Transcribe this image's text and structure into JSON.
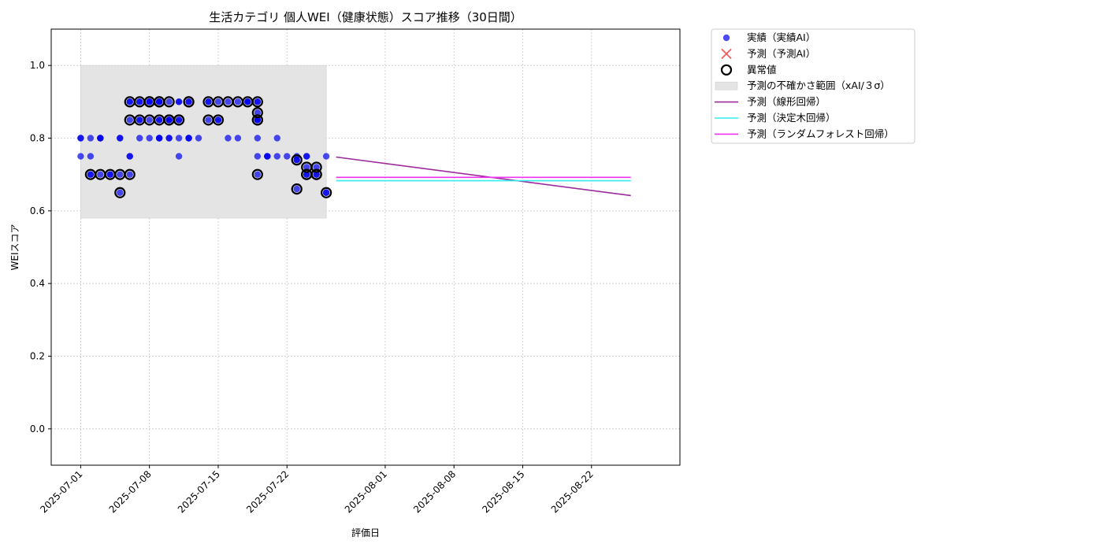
{
  "chart_data": {
    "type": "scatter",
    "title": "生活カテゴリ 個人WEI（健康状態）スコア推移（30日間）",
    "xlabel": "評価日",
    "ylabel": "WEIスコア",
    "xlim": [
      "2025-06-28",
      "2025-08-31"
    ],
    "ylim": [
      -0.1,
      1.1
    ],
    "x_ticks": [
      "2025-07-01",
      "2025-07-08",
      "2025-07-15",
      "2025-07-22",
      "2025-08-01",
      "2025-08-08",
      "2025-08-15",
      "2025-08-22"
    ],
    "y_ticks": [
      "0.0",
      "0.2",
      "0.4",
      "0.6",
      "0.8",
      "1.0"
    ],
    "grid": true,
    "legend_position": "outside upper right",
    "legend": [
      {
        "label": "実績（実績AI）",
        "kind": "actual"
      },
      {
        "label": "予測（予測AI）",
        "kind": "predicted"
      },
      {
        "label": "異常値",
        "kind": "anomaly"
      },
      {
        "label": "予測の不確かさ範囲（xAI/３σ）",
        "kind": "band"
      },
      {
        "label": "予測（線形回帰）",
        "kind": "linear"
      },
      {
        "label": "予測（決定木回帰）",
        "kind": "tree"
      },
      {
        "label": "予測（ランダムフォレスト回帰）",
        "kind": "forest"
      }
    ],
    "uncertainty_band": {
      "x_start": "2025-07-01",
      "x_end": "2025-07-26",
      "y_low": 0.58,
      "y_high": 1.0
    },
    "actual_points": [
      [
        "2025-07-01",
        0.8
      ],
      [
        "2025-07-01",
        0.75
      ],
      [
        "2025-07-01",
        0.8
      ],
      [
        "2025-07-02",
        0.7
      ],
      [
        "2025-07-02",
        0.7
      ],
      [
        "2025-07-02",
        0.75
      ],
      [
        "2025-07-02",
        0.8
      ],
      [
        "2025-07-03",
        0.7
      ],
      [
        "2025-07-03",
        0.8
      ],
      [
        "2025-07-03",
        0.8
      ],
      [
        "2025-07-03",
        0.8
      ],
      [
        "2025-07-04",
        0.7
      ],
      [
        "2025-07-04",
        0.7
      ],
      [
        "2025-07-05",
        0.65
      ],
      [
        "2025-07-05",
        0.7
      ],
      [
        "2025-07-05",
        0.8
      ],
      [
        "2025-07-05",
        0.8
      ],
      [
        "2025-07-06",
        0.9
      ],
      [
        "2025-07-06",
        0.85
      ],
      [
        "2025-07-06",
        0.7
      ],
      [
        "2025-07-06",
        0.75
      ],
      [
        "2025-07-06",
        0.9
      ],
      [
        "2025-07-06",
        0.75
      ],
      [
        "2025-07-07",
        0.85
      ],
      [
        "2025-07-07",
        0.9
      ],
      [
        "2025-07-07",
        0.8
      ],
      [
        "2025-07-07",
        0.9
      ],
      [
        "2025-07-07",
        0.85
      ],
      [
        "2025-07-08",
        0.9
      ],
      [
        "2025-07-08",
        0.9
      ],
      [
        "2025-07-08",
        0.8
      ],
      [
        "2025-07-08",
        0.85
      ],
      [
        "2025-07-08",
        0.9
      ],
      [
        "2025-07-09",
        0.9
      ],
      [
        "2025-07-09",
        0.85
      ],
      [
        "2025-07-09",
        0.8
      ],
      [
        "2025-07-09",
        0.9
      ],
      [
        "2025-07-09",
        0.8
      ],
      [
        "2025-07-09",
        0.9
      ],
      [
        "2025-07-09",
        0.85
      ],
      [
        "2025-07-09",
        0.8
      ],
      [
        "2025-07-10",
        0.85
      ],
      [
        "2025-07-10",
        0.85
      ],
      [
        "2025-07-10",
        0.9
      ],
      [
        "2025-07-10",
        0.85
      ],
      [
        "2025-07-10",
        0.8
      ],
      [
        "2025-07-10",
        0.85
      ],
      [
        "2025-07-10",
        0.8
      ],
      [
        "2025-07-11",
        0.75
      ],
      [
        "2025-07-11",
        0.8
      ],
      [
        "2025-07-11",
        0.85
      ],
      [
        "2025-07-11",
        0.85
      ],
      [
        "2025-07-11",
        0.9
      ],
      [
        "2025-07-11",
        0.9
      ],
      [
        "2025-07-12",
        0.8
      ],
      [
        "2025-07-12",
        0.9
      ],
      [
        "2025-07-12",
        0.8
      ],
      [
        "2025-07-12",
        0.9
      ],
      [
        "2025-07-12",
        0.8
      ],
      [
        "2025-07-13",
        0.8
      ],
      [
        "2025-07-14",
        0.85
      ],
      [
        "2025-07-14",
        0.9
      ],
      [
        "2025-07-14",
        0.9
      ],
      [
        "2025-07-15",
        0.85
      ],
      [
        "2025-07-15",
        0.9
      ],
      [
        "2025-07-15",
        0.85
      ],
      [
        "2025-07-16",
        0.8
      ],
      [
        "2025-07-16",
        0.9
      ],
      [
        "2025-07-17",
        0.9
      ],
      [
        "2025-07-17",
        0.8
      ],
      [
        "2025-07-18",
        0.9
      ],
      [
        "2025-07-18",
        0.9
      ],
      [
        "2025-07-18",
        0.9
      ],
      [
        "2025-07-19",
        0.85
      ],
      [
        "2025-07-19",
        0.9
      ],
      [
        "2025-07-19",
        0.85
      ],
      [
        "2025-07-19",
        0.9
      ],
      [
        "2025-07-19",
        0.8
      ],
      [
        "2025-07-19",
        0.85
      ],
      [
        "2025-07-19",
        0.87
      ],
      [
        "2025-07-19",
        0.75
      ],
      [
        "2025-07-19",
        0.7
      ],
      [
        "2025-07-20",
        0.75
      ],
      [
        "2025-07-20",
        0.75
      ],
      [
        "2025-07-20",
        0.75
      ],
      [
        "2025-07-21",
        0.8
      ],
      [
        "2025-07-21",
        0.75
      ],
      [
        "2025-07-22",
        0.75
      ],
      [
        "2025-07-23",
        0.66
      ],
      [
        "2025-07-23",
        0.75
      ],
      [
        "2025-07-23",
        0.74
      ],
      [
        "2025-07-23",
        0.74
      ],
      [
        "2025-07-24",
        0.72
      ],
      [
        "2025-07-24",
        0.75
      ],
      [
        "2025-07-24",
        0.7
      ],
      [
        "2025-07-24",
        0.7
      ],
      [
        "2025-07-24",
        0.75
      ],
      [
        "2025-07-25",
        0.7
      ],
      [
        "2025-07-25",
        0.72
      ],
      [
        "2025-07-25",
        0.7
      ],
      [
        "2025-07-26",
        0.65
      ],
      [
        "2025-07-26",
        0.75
      ],
      [
        "2025-07-26",
        0.65
      ]
    ],
    "anomaly_points": [
      [
        "2025-07-02",
        0.7
      ],
      [
        "2025-07-03",
        0.7
      ],
      [
        "2025-07-04",
        0.7
      ],
      [
        "2025-07-05",
        0.7
      ],
      [
        "2025-07-05",
        0.65
      ],
      [
        "2025-07-06",
        0.7
      ],
      [
        "2025-07-06",
        0.9
      ],
      [
        "2025-07-06",
        0.85
      ],
      [
        "2025-07-07",
        0.85
      ],
      [
        "2025-07-07",
        0.9
      ],
      [
        "2025-07-08",
        0.85
      ],
      [
        "2025-07-08",
        0.9
      ],
      [
        "2025-07-08",
        0.9
      ],
      [
        "2025-07-09",
        0.85
      ],
      [
        "2025-07-09",
        0.9
      ],
      [
        "2025-07-09",
        0.9
      ],
      [
        "2025-07-10",
        0.85
      ],
      [
        "2025-07-10",
        0.9
      ],
      [
        "2025-07-10",
        0.85
      ],
      [
        "2025-07-11",
        0.85
      ],
      [
        "2025-07-11",
        0.85
      ],
      [
        "2025-07-12",
        0.9
      ],
      [
        "2025-07-12",
        0.9
      ],
      [
        "2025-07-14",
        0.9
      ],
      [
        "2025-07-14",
        0.85
      ],
      [
        "2025-07-15",
        0.9
      ],
      [
        "2025-07-15",
        0.85
      ],
      [
        "2025-07-16",
        0.9
      ],
      [
        "2025-07-17",
        0.9
      ],
      [
        "2025-07-18",
        0.9
      ],
      [
        "2025-07-19",
        0.9
      ],
      [
        "2025-07-19",
        0.87
      ],
      [
        "2025-07-19",
        0.85
      ],
      [
        "2025-07-19",
        0.85
      ],
      [
        "2025-07-19",
        0.7
      ],
      [
        "2025-07-23",
        0.74
      ],
      [
        "2025-07-23",
        0.66
      ],
      [
        "2025-07-24",
        0.7
      ],
      [
        "2025-07-24",
        0.72
      ],
      [
        "2025-07-24",
        0.7
      ],
      [
        "2025-07-25",
        0.7
      ],
      [
        "2025-07-25",
        0.72
      ],
      [
        "2025-07-25",
        0.7
      ],
      [
        "2025-07-26",
        0.65
      ]
    ],
    "prediction_lines": [
      {
        "name": "予測（線形回帰）",
        "x": [
          "2025-07-27",
          "2025-08-26"
        ],
        "y": [
          0.748,
          0.642
        ]
      },
      {
        "name": "予測（決定木回帰）",
        "x": [
          "2025-07-27",
          "2025-08-26"
        ],
        "y": [
          0.683,
          0.683
        ]
      },
      {
        "name": "予測（ランダムフォレスト回帰）",
        "x": [
          "2025-07-27",
          "2025-08-26"
        ],
        "y": [
          0.692,
          0.692
        ]
      }
    ]
  },
  "colors": {
    "actual": "#0000ee",
    "predicted": "#ee3333",
    "anomaly": "#000000",
    "band": "#e4e4e4",
    "linear": "#9b2a9b",
    "tree": "#33eeee",
    "forest": "#ee33ee",
    "grid": "#c8c8c8"
  }
}
